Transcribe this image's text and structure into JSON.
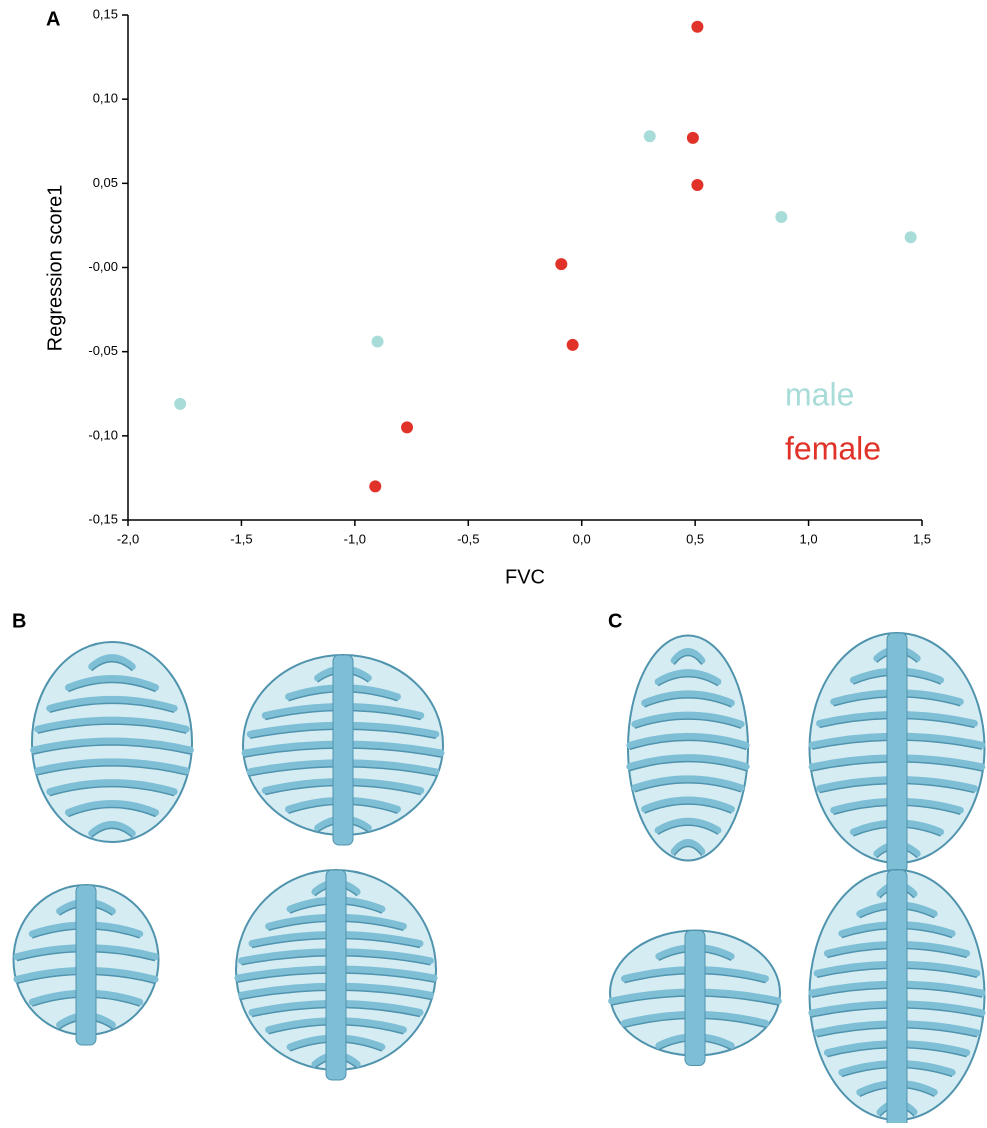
{
  "panel_labels": [
    "A",
    "B",
    "C"
  ],
  "chart_data": {
    "type": "scatter",
    "x_label": "FVC",
    "y_label": "Regression score1",
    "xlim": [
      -2.0,
      1.5
    ],
    "xticks": [
      {
        "value": -2.0,
        "label": "-2,0"
      },
      {
        "value": -1.5,
        "label": "-1,5"
      },
      {
        "value": -1.0,
        "label": "-1,0"
      },
      {
        "value": -0.5,
        "label": "-0,5"
      },
      {
        "value": 0.0,
        "label": "0,0"
      },
      {
        "value": 0.5,
        "label": "0,5"
      },
      {
        "value": 1.0,
        "label": "1,0"
      },
      {
        "value": 1.5,
        "label": "1,5"
      }
    ],
    "ylim": [
      -0.15,
      0.15
    ],
    "yticks": [
      {
        "value": -0.15,
        "label": "-0,15"
      },
      {
        "value": -0.1,
        "label": "-0,10"
      },
      {
        "value": -0.05,
        "label": "-0,05"
      },
      {
        "value": 0.0,
        "label": "-0,00"
      },
      {
        "value": 0.05,
        "label": "0,05"
      },
      {
        "value": 0.1,
        "label": "0,10"
      },
      {
        "value": 0.15,
        "label": "0,15"
      }
    ],
    "series": [
      {
        "name": "male",
        "color": "#a8dcd8",
        "x": [
          -1.77,
          -0.9,
          0.3,
          0.88,
          1.45
        ],
        "values": [
          -0.081,
          -0.044,
          0.078,
          0.03,
          0.018
        ]
      },
      {
        "name": "female",
        "color": "#e03228",
        "x": [
          0.51,
          0.49,
          0.51,
          -0.09,
          -0.04,
          -0.77,
          -0.91
        ],
        "values": [
          0.143,
          0.077,
          0.049,
          0.002,
          -0.046,
          -0.095,
          -0.13
        ]
      }
    ]
  }
}
